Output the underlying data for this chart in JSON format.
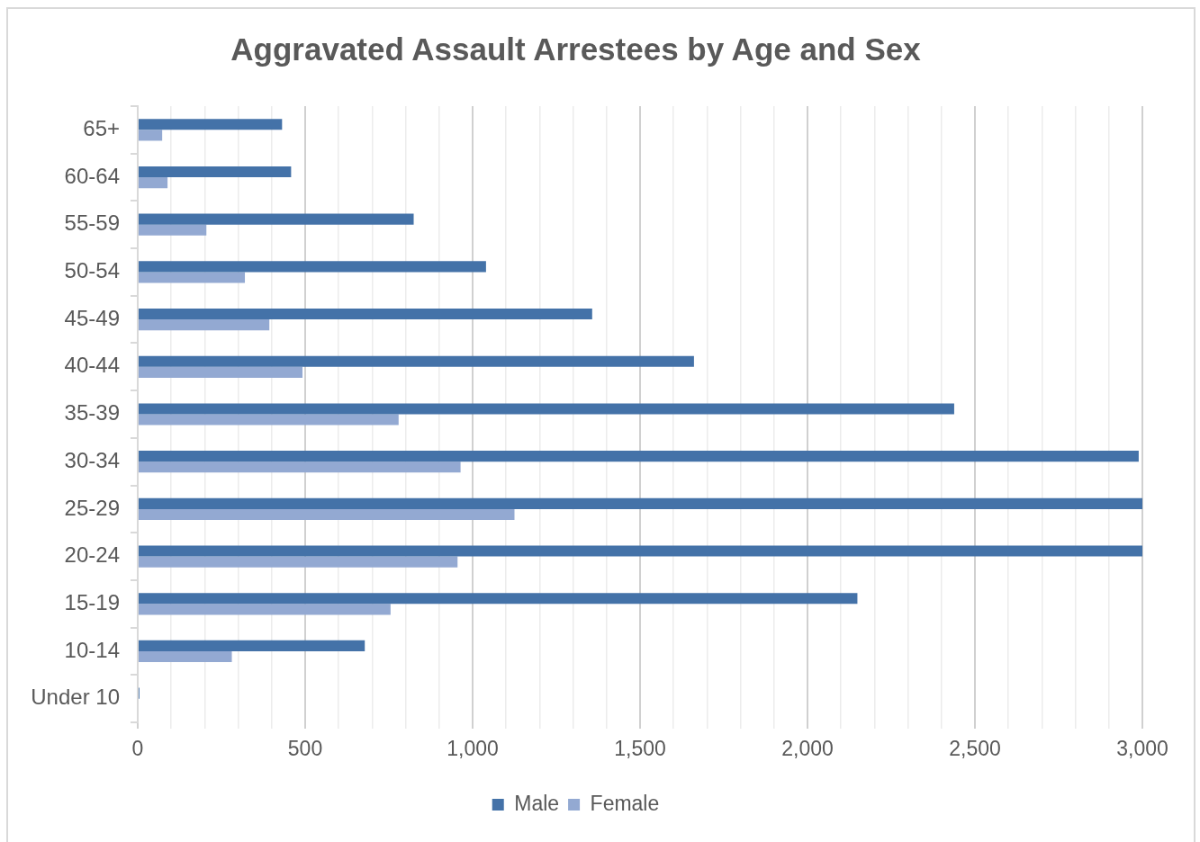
{
  "chart_data": {
    "type": "bar",
    "orientation": "horizontal",
    "title": "Aggravated Assault Arrestees by Age and Sex",
    "categories": [
      "65+",
      "60-64",
      "55-59",
      "50-54",
      "45-49",
      "40-44",
      "35-39",
      "30-34",
      "25-29",
      "20-24",
      "15-19",
      "10-14",
      "Under 10"
    ],
    "series": [
      {
        "name": "Male",
        "color": "#4472a8",
        "values": [
          431,
          458,
          824,
          1040,
          1357,
          1661,
          2438,
          2989,
          3000,
          3000,
          2149,
          678,
          5
        ]
      },
      {
        "name": "Female",
        "color": "#93a9d2",
        "values": [
          73,
          89,
          205,
          320,
          393,
          492,
          779,
          964,
          1125,
          955,
          755,
          281,
          0
        ]
      }
    ],
    "xlim": [
      0,
      3000
    ],
    "xticks": [
      0,
      {
        "value": 100,
        "label": null
      },
      {
        "value": 200,
        "label": null
      },
      {
        "value": 300,
        "label": null
      },
      {
        "value": 400,
        "label": null
      },
      500,
      {
        "value": 600,
        "label": null
      },
      {
        "value": 700,
        "label": null
      },
      {
        "value": 800,
        "label": null
      },
      {
        "value": 900,
        "label": null
      },
      {
        "value": 1000,
        "label": "1,000"
      },
      {
        "value": 1100,
        "label": null
      },
      {
        "value": 1200,
        "label": null
      },
      {
        "value": 1300,
        "label": null
      },
      {
        "value": 1400,
        "label": null
      },
      {
        "value": 1500,
        "label": "1,500"
      },
      {
        "value": 1600,
        "label": null
      },
      {
        "value": 1700,
        "label": null
      },
      {
        "value": 1800,
        "label": null
      },
      {
        "value": 1900,
        "label": null
      },
      {
        "value": 2000,
        "label": "2,000"
      },
      {
        "value": 2100,
        "label": null
      },
      {
        "value": 2200,
        "label": null
      },
      {
        "value": 2300,
        "label": null
      },
      {
        "value": 2400,
        "label": null
      },
      {
        "value": 2500,
        "label": "2,500"
      },
      {
        "value": 2600,
        "label": null
      },
      {
        "value": 2700,
        "label": null
      },
      {
        "value": 2800,
        "label": null
      },
      {
        "value": 2900,
        "label": null
      },
      {
        "value": 3000,
        "label": "3,000"
      }
    ],
    "grid": "x",
    "legend": "bottom"
  }
}
